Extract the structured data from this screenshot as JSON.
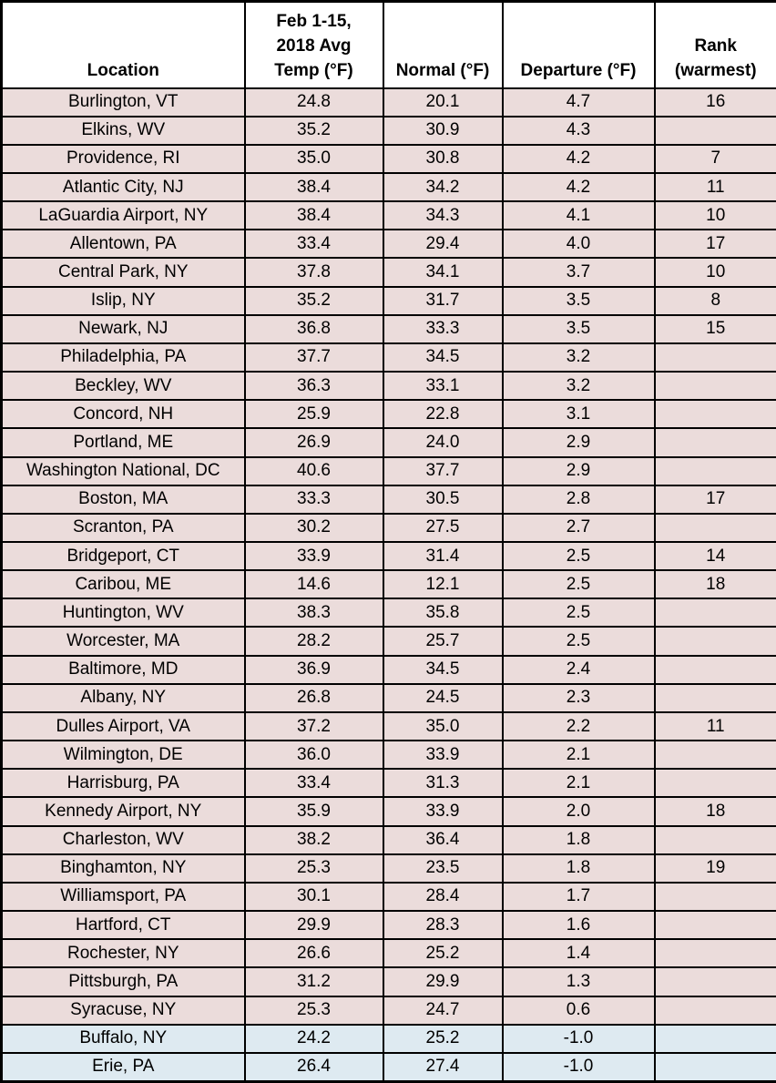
{
  "colors": {
    "warm_row": "#EBDCDB",
    "cold_row": "#DEEAF1",
    "border": "#000000",
    "header_bg": "#FFFFFF"
  },
  "chart_data": {
    "type": "table",
    "columns": [
      {
        "label": "Location"
      },
      {
        "label": "Feb 1-15,\n2018 Avg\nTemp (°F)"
      },
      {
        "label": "Normal (°F)"
      },
      {
        "label": "Departure (°F)"
      },
      {
        "label": "Rank\n(warmest)"
      }
    ],
    "rows": [
      {
        "location": "Burlington, VT",
        "avg_temp": "24.8",
        "normal": "20.1",
        "departure": "4.7",
        "rank": "16",
        "type": "warm"
      },
      {
        "location": "Elkins, WV",
        "avg_temp": "35.2",
        "normal": "30.9",
        "departure": "4.3",
        "rank": "",
        "type": "warm"
      },
      {
        "location": "Providence, RI",
        "avg_temp": "35.0",
        "normal": "30.8",
        "departure": "4.2",
        "rank": "7",
        "type": "warm"
      },
      {
        "location": "Atlantic City, NJ",
        "avg_temp": "38.4",
        "normal": "34.2",
        "departure": "4.2",
        "rank": "11",
        "type": "warm"
      },
      {
        "location": "LaGuardia Airport, NY",
        "avg_temp": "38.4",
        "normal": "34.3",
        "departure": "4.1",
        "rank": "10",
        "type": "warm"
      },
      {
        "location": "Allentown, PA",
        "avg_temp": "33.4",
        "normal": "29.4",
        "departure": "4.0",
        "rank": "17",
        "type": "warm"
      },
      {
        "location": "Central Park, NY",
        "avg_temp": "37.8",
        "normal": "34.1",
        "departure": "3.7",
        "rank": "10",
        "type": "warm"
      },
      {
        "location": "Islip, NY",
        "avg_temp": "35.2",
        "normal": "31.7",
        "departure": "3.5",
        "rank": "8",
        "type": "warm"
      },
      {
        "location": "Newark, NJ",
        "avg_temp": "36.8",
        "normal": "33.3",
        "departure": "3.5",
        "rank": "15",
        "type": "warm"
      },
      {
        "location": "Philadelphia, PA",
        "avg_temp": "37.7",
        "normal": "34.5",
        "departure": "3.2",
        "rank": "",
        "type": "warm"
      },
      {
        "location": "Beckley, WV",
        "avg_temp": "36.3",
        "normal": "33.1",
        "departure": "3.2",
        "rank": "",
        "type": "warm"
      },
      {
        "location": "Concord, NH",
        "avg_temp": "25.9",
        "normal": "22.8",
        "departure": "3.1",
        "rank": "",
        "type": "warm"
      },
      {
        "location": "Portland, ME",
        "avg_temp": "26.9",
        "normal": "24.0",
        "departure": "2.9",
        "rank": "",
        "type": "warm"
      },
      {
        "location": "Washington National, DC",
        "avg_temp": "40.6",
        "normal": "37.7",
        "departure": "2.9",
        "rank": "",
        "type": "warm"
      },
      {
        "location": "Boston, MA",
        "avg_temp": "33.3",
        "normal": "30.5",
        "departure": "2.8",
        "rank": "17",
        "type": "warm"
      },
      {
        "location": "Scranton, PA",
        "avg_temp": "30.2",
        "normal": "27.5",
        "departure": "2.7",
        "rank": "",
        "type": "warm"
      },
      {
        "location": "Bridgeport, CT",
        "avg_temp": "33.9",
        "normal": "31.4",
        "departure": "2.5",
        "rank": "14",
        "type": "warm"
      },
      {
        "location": "Caribou, ME",
        "avg_temp": "14.6",
        "normal": "12.1",
        "departure": "2.5",
        "rank": "18",
        "type": "warm"
      },
      {
        "location": "Huntington, WV",
        "avg_temp": "38.3",
        "normal": "35.8",
        "departure": "2.5",
        "rank": "",
        "type": "warm"
      },
      {
        "location": "Worcester, MA",
        "avg_temp": "28.2",
        "normal": "25.7",
        "departure": "2.5",
        "rank": "",
        "type": "warm"
      },
      {
        "location": "Baltimore, MD",
        "avg_temp": "36.9",
        "normal": "34.5",
        "departure": "2.4",
        "rank": "",
        "type": "warm"
      },
      {
        "location": "Albany, NY",
        "avg_temp": "26.8",
        "normal": "24.5",
        "departure": "2.3",
        "rank": "",
        "type": "warm"
      },
      {
        "location": "Dulles Airport, VA",
        "avg_temp": "37.2",
        "normal": "35.0",
        "departure": "2.2",
        "rank": "11",
        "type": "warm"
      },
      {
        "location": "Wilmington, DE",
        "avg_temp": "36.0",
        "normal": "33.9",
        "departure": "2.1",
        "rank": "",
        "type": "warm"
      },
      {
        "location": "Harrisburg, PA",
        "avg_temp": "33.4",
        "normal": "31.3",
        "departure": "2.1",
        "rank": "",
        "type": "warm"
      },
      {
        "location": "Kennedy Airport, NY",
        "avg_temp": "35.9",
        "normal": "33.9",
        "departure": "2.0",
        "rank": "18",
        "type": "warm"
      },
      {
        "location": "Charleston, WV",
        "avg_temp": "38.2",
        "normal": "36.4",
        "departure": "1.8",
        "rank": "",
        "type": "warm"
      },
      {
        "location": "Binghamton, NY",
        "avg_temp": "25.3",
        "normal": "23.5",
        "departure": "1.8",
        "rank": "19",
        "type": "warm"
      },
      {
        "location": "Williamsport, PA",
        "avg_temp": "30.1",
        "normal": "28.4",
        "departure": "1.7",
        "rank": "",
        "type": "warm"
      },
      {
        "location": "Hartford, CT",
        "avg_temp": "29.9",
        "normal": "28.3",
        "departure": "1.6",
        "rank": "",
        "type": "warm"
      },
      {
        "location": "Rochester, NY",
        "avg_temp": "26.6",
        "normal": "25.2",
        "departure": "1.4",
        "rank": "",
        "type": "warm"
      },
      {
        "location": "Pittsburgh, PA",
        "avg_temp": "31.2",
        "normal": "29.9",
        "departure": "1.3",
        "rank": "",
        "type": "warm"
      },
      {
        "location": "Syracuse, NY",
        "avg_temp": "25.3",
        "normal": "24.7",
        "departure": "0.6",
        "rank": "",
        "type": "warm"
      },
      {
        "location": "Buffalo, NY",
        "avg_temp": "24.2",
        "normal": "25.2",
        "departure": "-1.0",
        "rank": "",
        "type": "cold"
      },
      {
        "location": "Erie, PA",
        "avg_temp": "26.4",
        "normal": "27.4",
        "departure": "-1.0",
        "rank": "",
        "type": "cold"
      }
    ]
  }
}
